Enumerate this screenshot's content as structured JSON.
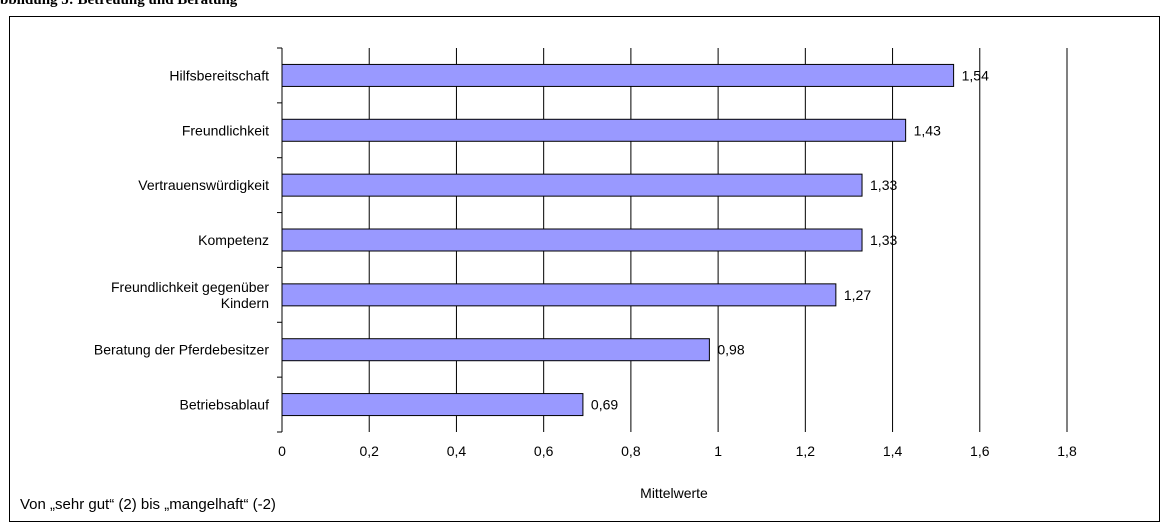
{
  "header": {
    "caption": "bbildung 5: Betreuung und Beratung"
  },
  "footnote": "Von „sehr gut“ (2) bis „mangelhaft“ (-2)",
  "colors": {
    "bar_fill": "#9999ff",
    "bar_stroke": "#000000",
    "grid": "#000000",
    "text": "#000000"
  },
  "chart_data": {
    "type": "bar",
    "orientation": "horizontal",
    "categories": [
      "Hilfsbereitschaft",
      "Freundlichkeit",
      "Vertrauenswürdigkeit",
      "Kompetenz",
      "Freundlichkeit gegenüber Kindern",
      "Beratung der Pferdebesitzer",
      "Betriebsablauf"
    ],
    "category_lines": [
      [
        "Hilfsbereitschaft"
      ],
      [
        "Freundlichkeit"
      ],
      [
        "Vertrauenswürdigkeit"
      ],
      [
        "Kompetenz"
      ],
      [
        "Freundlichkeit gegenüber",
        "Kindern"
      ],
      [
        "Beratung der Pferdebesitzer"
      ],
      [
        "Betriebsablauf"
      ]
    ],
    "values": [
      1.54,
      1.43,
      1.33,
      1.33,
      1.27,
      0.98,
      0.69
    ],
    "value_labels": [
      "1,54",
      "1,43",
      "1,33",
      "1,33",
      "1,27",
      "0,98",
      "0,69"
    ],
    "xlim": [
      0,
      1.8
    ],
    "xticks": [
      0,
      0.2,
      0.4,
      0.6,
      0.8,
      1,
      1.2,
      1.4,
      1.6,
      1.8
    ],
    "xtick_labels": [
      "0",
      "0,2",
      "0,4",
      "0,6",
      "0,8",
      "1",
      "1,2",
      "1,4",
      "1,6",
      "1,8"
    ],
    "xlabel": "Mittelwerte",
    "ylabel": "",
    "grid": "vertical",
    "legend": "none"
  }
}
